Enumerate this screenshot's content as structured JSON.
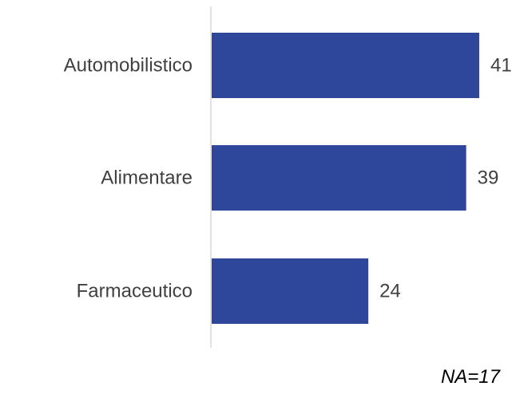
{
  "chart_data": {
    "type": "bar",
    "orientation": "horizontal",
    "categories": [
      "Automobilistico",
      "Alimentare",
      "Farmaceutico"
    ],
    "values": [
      41,
      39,
      24
    ],
    "title": "",
    "xlabel": "",
    "ylabel": "",
    "xlim": [
      0,
      45
    ],
    "grid": false,
    "legend": "none",
    "data_labels": true,
    "bar_color": "#2E479B",
    "axis_color": "#D9D9D9",
    "note": "NA=17"
  }
}
